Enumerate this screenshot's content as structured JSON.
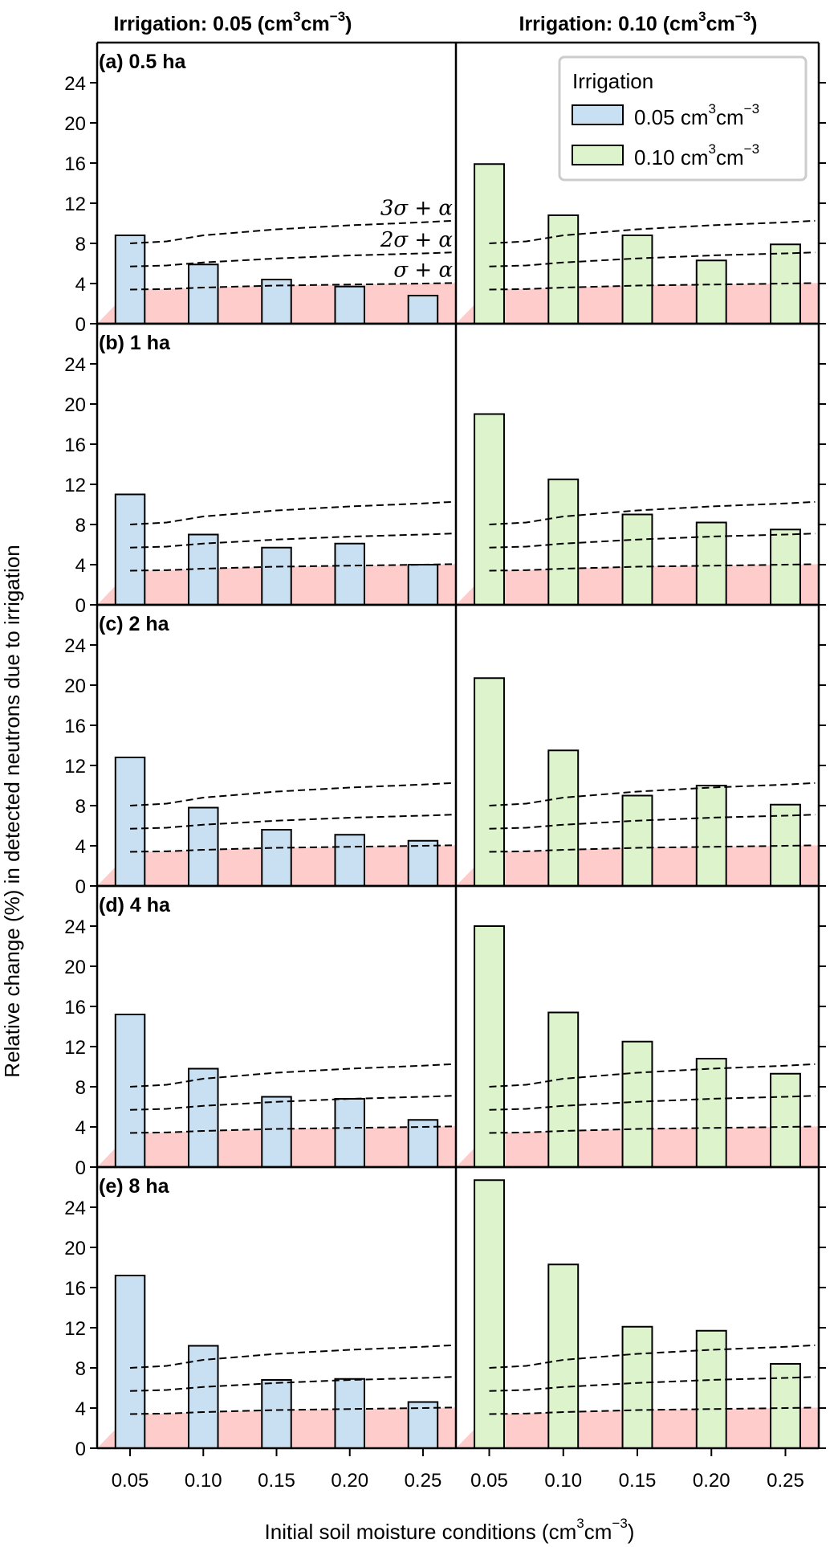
{
  "chart_data": {
    "type": "bar",
    "xlabel": "Initial soil moisture conditions (cm",
    "xlabel_unit_sup1": "3",
    "xlabel_unit_mid": "cm",
    "xlabel_unit_sup2": "−3",
    "xlabel_close": ")",
    "ylabel": "Relative change (%) in detected neutrons due to irrigation",
    "ylim": [
      0,
      28
    ],
    "yticks": [
      0,
      4,
      8,
      12,
      16,
      20,
      24
    ],
    "ytick_labels": [
      "0",
      "4",
      "8",
      "12",
      "16",
      "20",
      "24"
    ],
    "categories": [
      "0.05",
      "0.10",
      "0.15",
      "0.20",
      "0.25"
    ],
    "columns": [
      {
        "title": "Irrigation: 0.05 (cm",
        "title_sup1": "3",
        "title_mid": "cm",
        "title_sup2": "−3",
        "title_close": ")",
        "series_name": "0.05 cm3cm-3",
        "color": "#c9dff2"
      },
      {
        "title": "Irrigation: 0.10 (cm",
        "title_sup1": "3",
        "title_mid": "cm",
        "title_sup2": "−3",
        "title_close": ")",
        "series_name": "0.10 cm3cm-3",
        "color": "#dcf3cc"
      }
    ],
    "panels": [
      {
        "label": "(a) 0.5 ha",
        "series": [
          {
            "name": "Irrigation 0.05",
            "values": [
              8.8,
              5.9,
              4.4,
              3.7,
              2.8
            ]
          },
          {
            "name": "Irrigation 0.10",
            "values": [
              15.9,
              10.8,
              8.8,
              6.3,
              7.9
            ]
          }
        ]
      },
      {
        "label": "(b) 1 ha",
        "series": [
          {
            "name": "Irrigation 0.05",
            "values": [
              11.0,
              7.0,
              5.7,
              6.1,
              4.0
            ]
          },
          {
            "name": "Irrigation 0.10",
            "values": [
              19.0,
              12.5,
              9.0,
              8.2,
              7.5
            ]
          }
        ]
      },
      {
        "label": "(c) 2 ha",
        "series": [
          {
            "name": "Irrigation 0.05",
            "values": [
              12.8,
              7.8,
              5.6,
              5.1,
              4.5
            ]
          },
          {
            "name": "Irrigation 0.10",
            "values": [
              20.7,
              13.5,
              9.0,
              10.0,
              8.1
            ]
          }
        ]
      },
      {
        "label": "(d) 4 ha",
        "series": [
          {
            "name": "Irrigation 0.05",
            "values": [
              15.2,
              9.8,
              7.0,
              6.8,
              4.7
            ]
          },
          {
            "name": "Irrigation 0.10",
            "values": [
              24.0,
              15.4,
              12.5,
              10.8,
              9.3
            ]
          }
        ]
      },
      {
        "label": "(e) 8 ha",
        "series": [
          {
            "name": "Irrigation 0.05",
            "values": [
              17.2,
              10.2,
              6.8,
              6.9,
              4.6
            ]
          },
          {
            "name": "Irrigation 0.10",
            "values": [
              26.7,
              18.3,
              12.1,
              11.7,
              8.4
            ]
          }
        ]
      }
    ],
    "thresholds": {
      "x_positions": [
        0.0,
        0.5,
        1.0,
        1.5,
        2.0,
        2.5,
        3.0,
        3.5,
        4.0,
        4.4
      ],
      "lines": [
        {
          "name": "sigma + alpha",
          "label": "σ + α",
          "values": [
            3.4,
            3.45,
            3.6,
            3.7,
            3.8,
            3.85,
            3.9,
            3.95,
            4.0,
            4.05
          ]
        },
        {
          "name": "2 sigma + alpha",
          "label": "2σ + α",
          "values": [
            5.7,
            5.8,
            6.1,
            6.3,
            6.5,
            6.65,
            6.8,
            6.9,
            7.0,
            7.1
          ]
        },
        {
          "name": "3 sigma + alpha",
          "label": "3σ + α",
          "values": [
            8.0,
            8.2,
            8.8,
            9.1,
            9.4,
            9.6,
            9.8,
            9.95,
            10.1,
            10.25
          ]
        }
      ],
      "shaded_region": "0 to sigma + alpha",
      "shade_color": "#ffcccc"
    },
    "legend": {
      "title": "Irrigation",
      "placement": "top-right",
      "entries": [
        {
          "label": "0.05 cm",
          "sup1": "3",
          "mid": "cm",
          "sup2": "−3",
          "color": "#c9dff2"
        },
        {
          "label": "0.10 cm",
          "sup1": "3",
          "mid": "cm",
          "sup2": "−3",
          "color": "#dcf3cc"
        }
      ]
    },
    "grid": false
  }
}
